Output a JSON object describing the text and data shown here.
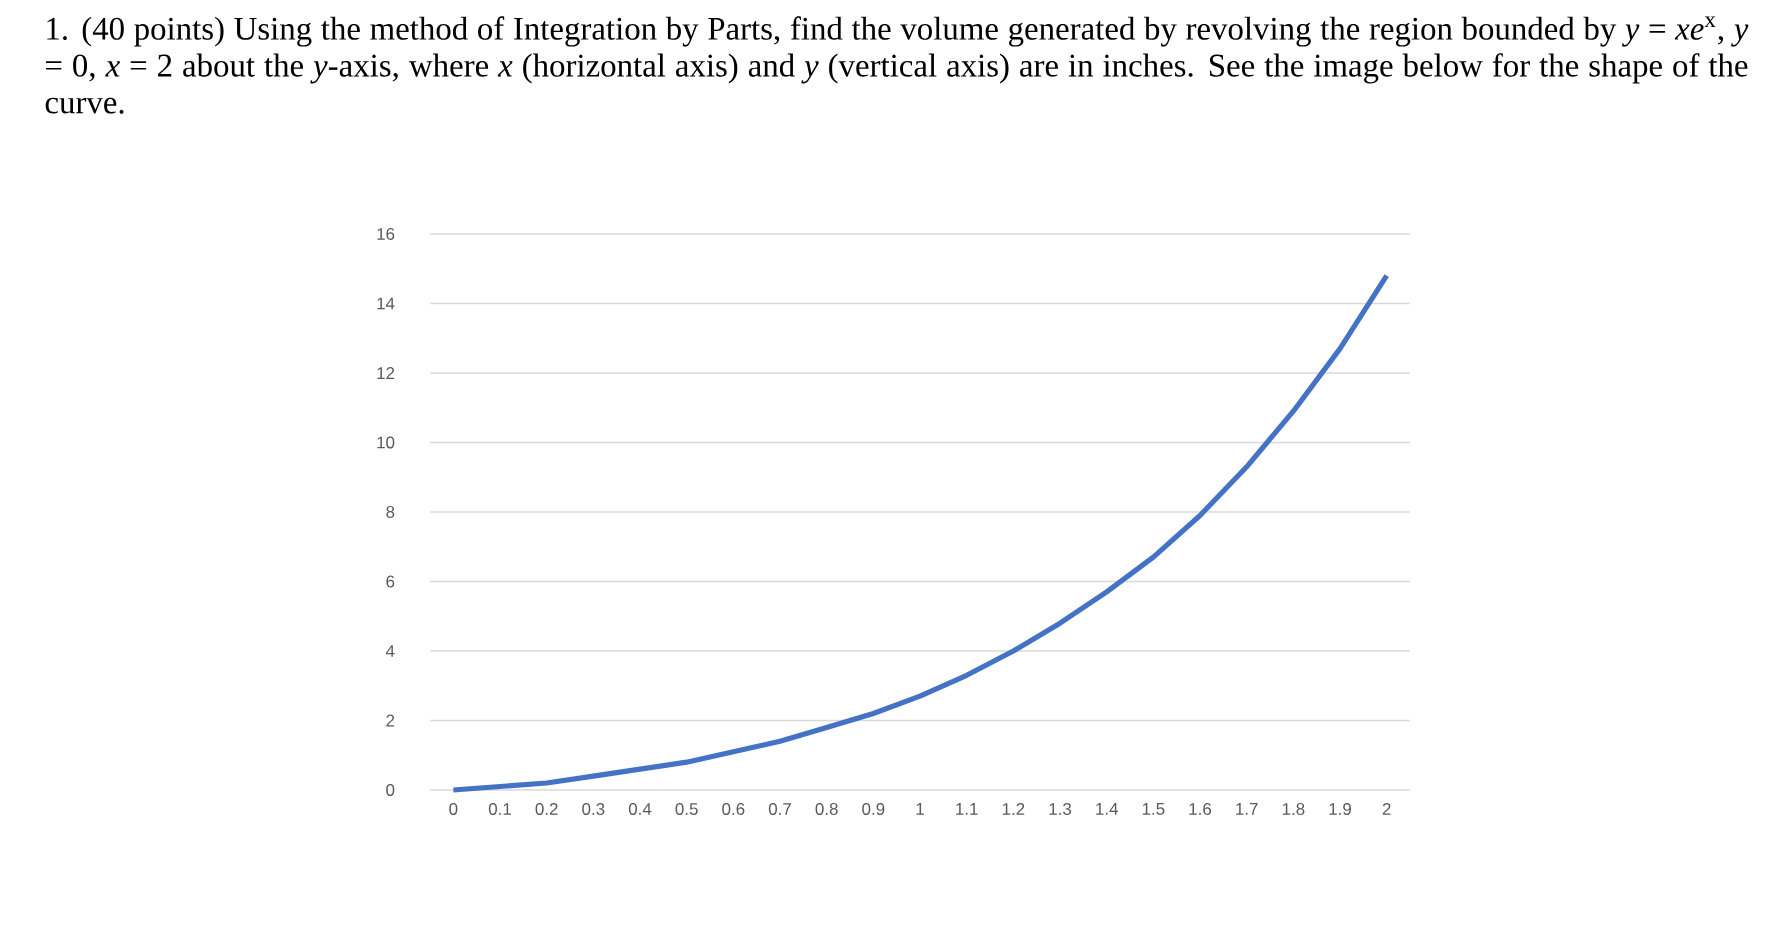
{
  "chart_data": {
    "type": "line",
    "title": "1. (40 points) Using the method of Integration by Parts, find the volume generated by revolving the region bounded by *y* = *xe*$^{x}$, *y* = 0, *x* = 2 about the *y*-axis, where *x* (horizontal axis) and *y* (vertical axis) are in inches. See the image below for the shape of the curve.",
    "categories": [
      "0",
      "0.1",
      "0.2",
      "0.3",
      "0.4",
      "0.5",
      "0.6",
      "0.7",
      "0.8",
      "0.9",
      "1",
      "1.1",
      "1.2",
      "1.3",
      "1.4",
      "1.5",
      "1.6",
      "1.7",
      "1.8",
      "1.9",
      "2"
    ],
    "values": [
      0,
      0.1,
      0.2,
      0.4,
      0.6,
      0.8,
      1.1,
      1.4,
      1.8,
      2.2,
      2.7,
      3.3,
      4.0,
      4.8,
      5.7,
      6.7,
      7.9,
      9.3,
      10.9,
      12.7,
      14.8
    ],
    "color": "#4472c4",
    "ylim": [
      0,
      16
    ],
    "yticks": [
      0,
      2,
      4,
      6,
      8,
      10,
      12,
      14,
      16
    ],
    "grid": "y"
  }
}
